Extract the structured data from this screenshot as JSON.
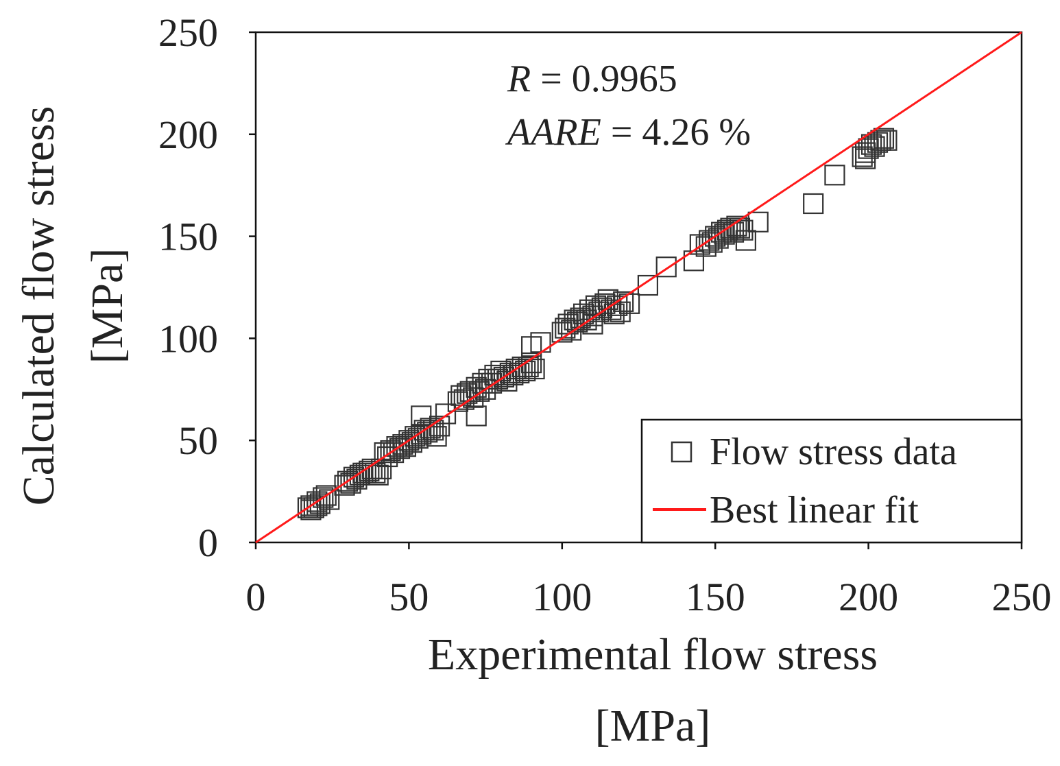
{
  "chart_data": {
    "type": "scatter",
    "xlabel_line1": "Experimental flow stress",
    "xlabel_line2": "[MPa]",
    "ylabel_line1": "Calculated flow stress",
    "ylabel_line2": "[MPa]",
    "xlim": [
      0,
      250
    ],
    "ylim": [
      0,
      250
    ],
    "x_ticks": [
      0,
      50,
      100,
      150,
      200,
      250
    ],
    "y_ticks": [
      0,
      50,
      100,
      150,
      200,
      250
    ],
    "x_tick_labels": [
      "0",
      "50",
      "100",
      "150",
      "200",
      "250"
    ],
    "y_tick_labels": [
      "0",
      "50",
      "100",
      "150",
      "200",
      "250"
    ],
    "grid": false,
    "legend_position": "bottom-right",
    "legend": [
      {
        "label": "Flow stress data",
        "marker": "open-square",
        "color": "#333333"
      },
      {
        "label": "Best linear fit",
        "marker": "line",
        "color": "#ff1a1a"
      }
    ],
    "annotations": {
      "r_symbol": "R",
      "r_value": " = 0.9965",
      "aare_symbol": "AARE",
      "aare_value": " = 4.26 %"
    },
    "fit_line": {
      "x": [
        0,
        250
      ],
      "y": [
        0,
        250
      ],
      "color": "#ff1a1a"
    },
    "series": [
      {
        "name": "Flow stress data",
        "color": "#333333",
        "points": [
          [
            17,
            17
          ],
          [
            18,
            18
          ],
          [
            19,
            17
          ],
          [
            20,
            20
          ],
          [
            21,
            19
          ],
          [
            22,
            22
          ],
          [
            23,
            23
          ],
          [
            24,
            21
          ],
          [
            20,
            18
          ],
          [
            18,
            16
          ],
          [
            29,
            28
          ],
          [
            30,
            30
          ],
          [
            31,
            29
          ],
          [
            32,
            32
          ],
          [
            33,
            31
          ],
          [
            34,
            33
          ],
          [
            35,
            34
          ],
          [
            36,
            34
          ],
          [
            37,
            35
          ],
          [
            38,
            36
          ],
          [
            39,
            34
          ],
          [
            40,
            33
          ],
          [
            41,
            36
          ],
          [
            42,
            44
          ],
          [
            43,
            42
          ],
          [
            44,
            45
          ],
          [
            45,
            44
          ],
          [
            46,
            47
          ],
          [
            47,
            46
          ],
          [
            48,
            48
          ],
          [
            49,
            47
          ],
          [
            50,
            50
          ],
          [
            51,
            49
          ],
          [
            52,
            52
          ],
          [
            53,
            51
          ],
          [
            54,
            53
          ],
          [
            55,
            55
          ],
          [
            56,
            54
          ],
          [
            57,
            56
          ],
          [
            58,
            55
          ],
          [
            60,
            57
          ],
          [
            54,
            62
          ],
          [
            62,
            63
          ],
          [
            59,
            52
          ],
          [
            66,
            69
          ],
          [
            67,
            72
          ],
          [
            68,
            70
          ],
          [
            69,
            73
          ],
          [
            70,
            74
          ],
          [
            71,
            71
          ],
          [
            72,
            76
          ],
          [
            73,
            74
          ],
          [
            74,
            78
          ],
          [
            75,
            75
          ],
          [
            76,
            80
          ],
          [
            77,
            78
          ],
          [
            78,
            82
          ],
          [
            79,
            80
          ],
          [
            80,
            84
          ],
          [
            81,
            81
          ],
          [
            82,
            79
          ],
          [
            83,
            83
          ],
          [
            84,
            82
          ],
          [
            85,
            85
          ],
          [
            86,
            83
          ],
          [
            87,
            86
          ],
          [
            88,
            84
          ],
          [
            89,
            86
          ],
          [
            90,
            88
          ],
          [
            91,
            85
          ],
          [
            72,
            62
          ],
          [
            90,
            96
          ],
          [
            93,
            98
          ],
          [
            100,
            103
          ],
          [
            101,
            105
          ],
          [
            102,
            107
          ],
          [
            103,
            104
          ],
          [
            104,
            109
          ],
          [
            105,
            108
          ],
          [
            106,
            110
          ],
          [
            107,
            112
          ],
          [
            108,
            109
          ],
          [
            109,
            114
          ],
          [
            110,
            111
          ],
          [
            111,
            116
          ],
          [
            112,
            113
          ],
          [
            113,
            115
          ],
          [
            114,
            117
          ],
          [
            115,
            119
          ],
          [
            116,
            114
          ],
          [
            117,
            112
          ],
          [
            118,
            116
          ],
          [
            119,
            113
          ],
          [
            120,
            118
          ],
          [
            122,
            117
          ],
          [
            110,
            107
          ],
          [
            128,
            126
          ],
          [
            134,
            135
          ],
          [
            143,
            138
          ],
          [
            145,
            146
          ],
          [
            147,
            145
          ],
          [
            148,
            148
          ],
          [
            149,
            147
          ],
          [
            150,
            150
          ],
          [
            151,
            149
          ],
          [
            152,
            152
          ],
          [
            153,
            151
          ],
          [
            154,
            153
          ],
          [
            155,
            154
          ],
          [
            156,
            152
          ],
          [
            157,
            155
          ],
          [
            158,
            154
          ],
          [
            159,
            153
          ],
          [
            160,
            148
          ],
          [
            164,
            157
          ],
          [
            182,
            166
          ],
          [
            189,
            180
          ],
          [
            198,
            189
          ],
          [
            199,
            191
          ],
          [
            200,
            193
          ],
          [
            201,
            195
          ],
          [
            202,
            194
          ],
          [
            203,
            196
          ],
          [
            204,
            197
          ],
          [
            205,
            198
          ],
          [
            206,
            197
          ],
          [
            199,
            188
          ]
        ]
      }
    ]
  }
}
